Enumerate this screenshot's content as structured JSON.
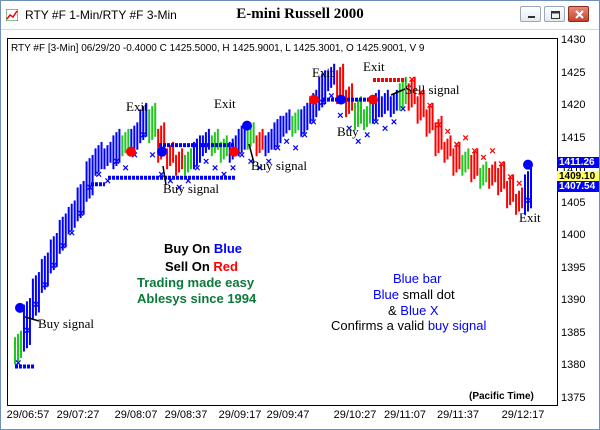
{
  "window": {
    "tab_title": "RTY #F 1-Min/RTY #F 3-Min",
    "chart_title": "E-mini Russell 2000",
    "colors": {
      "up_blue": "#0000ff",
      "down_red": "#ff0000",
      "neutral_green": "#1ec81e",
      "accent_green": "#0a7a3a"
    }
  },
  "info_line": "RTY #F [3-Min] 06/29/20  -0.4000 C 1425.5000, H 1425.9001, L 1425.3001, O 1425.9001, V 9",
  "annotations": {
    "exit1": "Exit",
    "exit2": "Exit",
    "exit3": "Exit",
    "exit4": "Exit",
    "exit5": "Exit",
    "sell_signal": "Sell signal",
    "buy": "Buy",
    "buy_signal_left": "Buy signal",
    "buy_signal_mid": "Buy signal",
    "buy_signal_mid2": "Buy signal"
  },
  "legend_top": {
    "buy_prefix": "Buy On ",
    "buy_word": "Blue",
    "sell_prefix": "Sell On ",
    "sell_word": "Red",
    "line3": "Trading made easy",
    "line4": "Ablesys since 1994"
  },
  "legend_bottom": {
    "blue_bar": "Blue bar",
    "blue_word": "Blue",
    "small_dot": " small dot",
    "amp": "& ",
    "blue_x": "Blue X",
    "confirms": "Confirms a valid ",
    "buy_signal": "buy signal"
  },
  "footer": "(Pacific Time)",
  "price_tags": [
    "1411.26",
    "1409.10",
    "1407.54"
  ],
  "chart_data": {
    "type": "bar",
    "title": "E-mini Russell 2000",
    "y_ticks": [
      "1430",
      "1425",
      "1420",
      "1415",
      "1410",
      "1405",
      "1400",
      "1395",
      "1390",
      "1385",
      "1380",
      "1375"
    ],
    "x_ticks": [
      "29/06:57",
      "29/07:27",
      "29/08:07",
      "29/08:37",
      "29/09:17",
      "29/09:47",
      "29/10:27",
      "29/11:07",
      "29/11:37",
      "29/12:17"
    ],
    "ylim": [
      1375,
      1430
    ],
    "price_series": [
      {
        "t": 0,
        "p": 1384,
        "c": "green"
      },
      {
        "t": 1,
        "p": 1389,
        "c": "blue"
      },
      {
        "t": 2,
        "p": 1393,
        "c": "blue"
      },
      {
        "t": 3,
        "p": 1396,
        "c": "blue"
      },
      {
        "t": 4,
        "p": 1399,
        "c": "blue"
      },
      {
        "t": 5,
        "p": 1402,
        "c": "blue"
      },
      {
        "t": 6,
        "p": 1404,
        "c": "blue"
      },
      {
        "t": 7,
        "p": 1407,
        "c": "blue"
      },
      {
        "t": 8,
        "p": 1411,
        "c": "blue"
      },
      {
        "t": 9,
        "p": 1413,
        "c": "blue"
      },
      {
        "t": 10,
        "p": 1412,
        "c": "blue"
      },
      {
        "t": 11,
        "p": 1415,
        "c": "blue"
      },
      {
        "t": 12,
        "p": 1414,
        "c": "green"
      },
      {
        "t": 13,
        "p": 1416,
        "c": "blue"
      },
      {
        "t": 14,
        "p": 1419,
        "c": "blue"
      },
      {
        "t": 15,
        "p": 1416,
        "c": "green"
      },
      {
        "t": 16,
        "p": 1413,
        "c": "red"
      },
      {
        "t": 17,
        "p": 1412,
        "c": "red"
      },
      {
        "t": 18,
        "p": 1411,
        "c": "red"
      },
      {
        "t": 19,
        "p": 1412,
        "c": "green"
      },
      {
        "t": 20,
        "p": 1414,
        "c": "blue"
      },
      {
        "t": 21,
        "p": 1415,
        "c": "blue"
      },
      {
        "t": 22,
        "p": 1414,
        "c": "green"
      },
      {
        "t": 23,
        "p": 1413,
        "c": "green"
      },
      {
        "t": 24,
        "p": 1414,
        "c": "blue"
      },
      {
        "t": 25,
        "p": 1416,
        "c": "blue"
      },
      {
        "t": 26,
        "p": 1415,
        "c": "green"
      },
      {
        "t": 27,
        "p": 1414,
        "c": "red"
      },
      {
        "t": 28,
        "p": 1415,
        "c": "blue"
      },
      {
        "t": 29,
        "p": 1417,
        "c": "blue"
      },
      {
        "t": 30,
        "p": 1418,
        "c": "blue"
      },
      {
        "t": 31,
        "p": 1417,
        "c": "green"
      },
      {
        "t": 32,
        "p": 1419,
        "c": "blue"
      },
      {
        "t": 33,
        "p": 1421,
        "c": "blue"
      },
      {
        "t": 34,
        "p": 1424,
        "c": "blue"
      },
      {
        "t": 35,
        "p": 1425,
        "c": "blue"
      },
      {
        "t": 36,
        "p": 1422,
        "c": "red"
      },
      {
        "t": 37,
        "p": 1420,
        "c": "red"
      },
      {
        "t": 38,
        "p": 1418,
        "c": "green"
      },
      {
        "t": 39,
        "p": 1419,
        "c": "green"
      },
      {
        "t": 40,
        "p": 1421,
        "c": "blue"
      },
      {
        "t": 41,
        "p": 1420,
        "c": "blue"
      },
      {
        "t": 42,
        "p": 1421,
        "c": "blue"
      },
      {
        "t": 43,
        "p": 1423,
        "c": "green"
      },
      {
        "t": 44,
        "p": 1421,
        "c": "red"
      },
      {
        "t": 45,
        "p": 1419,
        "c": "red"
      },
      {
        "t": 46,
        "p": 1417,
        "c": "red"
      },
      {
        "t": 47,
        "p": 1414,
        "c": "red"
      },
      {
        "t": 48,
        "p": 1413,
        "c": "red"
      },
      {
        "t": 49,
        "p": 1411,
        "c": "red"
      },
      {
        "t": 50,
        "p": 1412,
        "c": "green"
      },
      {
        "t": 51,
        "p": 1410,
        "c": "red"
      },
      {
        "t": 52,
        "p": 1409,
        "c": "green"
      },
      {
        "t": 53,
        "p": 1410,
        "c": "red"
      },
      {
        "t": 54,
        "p": 1408,
        "c": "red"
      },
      {
        "t": 55,
        "p": 1406,
        "c": "red"
      },
      {
        "t": 56,
        "p": 1405,
        "c": "red"
      },
      {
        "t": 57,
        "p": 1409,
        "c": "blue"
      }
    ]
  }
}
